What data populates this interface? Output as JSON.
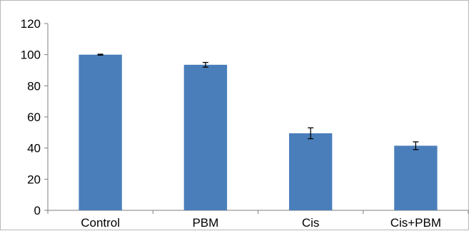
{
  "chart_data": {
    "type": "bar",
    "title": "",
    "xlabel": "",
    "ylabel": "",
    "categories": [
      "Control",
      "PBM",
      "Cis",
      "Cis+PBM"
    ],
    "values": [
      100,
      93.5,
      49.5,
      41.5
    ],
    "error": [
      0.3,
      1.5,
      3.5,
      2.5
    ],
    "ylim": [
      0,
      120
    ],
    "yticks": [
      0,
      20,
      40,
      60,
      80,
      100,
      120
    ],
    "grid": false,
    "legend": "none",
    "bar_color": "#4a7ebb",
    "error_color": "#000000"
  }
}
